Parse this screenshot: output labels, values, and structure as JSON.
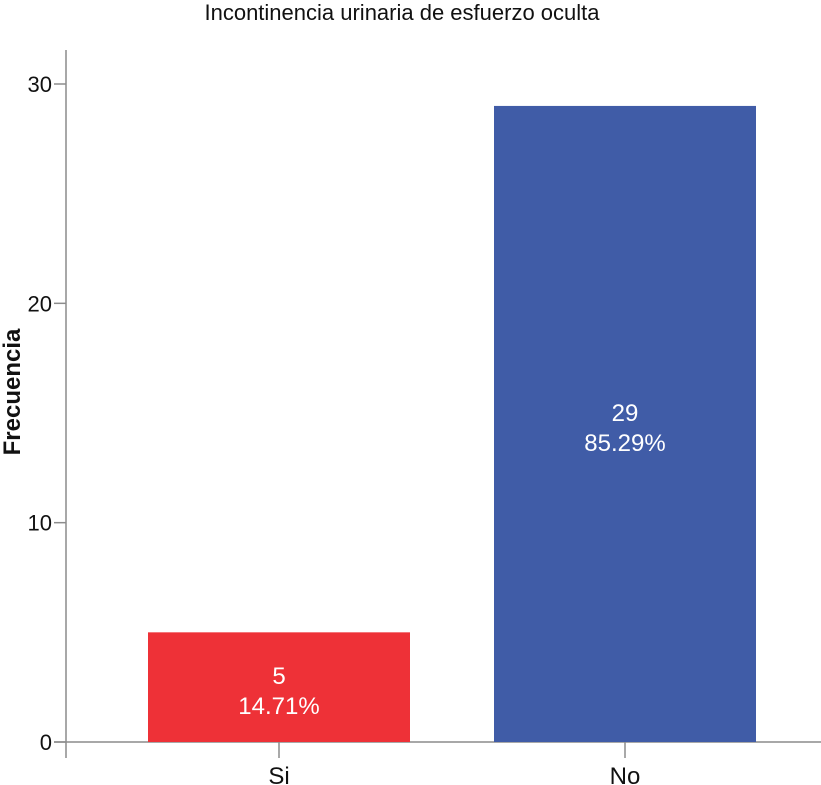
{
  "chart_data": {
    "type": "bar",
    "title": "Incontinencia urinaria de esfuerzo oculta",
    "xlabel": "",
    "ylabel": "Frecuencia",
    "categories": [
      "Si",
      "No"
    ],
    "values": [
      5,
      29
    ],
    "percent_labels": [
      "14.71%",
      "85.29%"
    ],
    "colors": [
      "#ee3137",
      "#405ca7"
    ],
    "ylim": [
      0,
      30
    ],
    "yticks": [
      "0",
      "10",
      "20",
      "30"
    ],
    "grid": false,
    "legend": "none"
  }
}
